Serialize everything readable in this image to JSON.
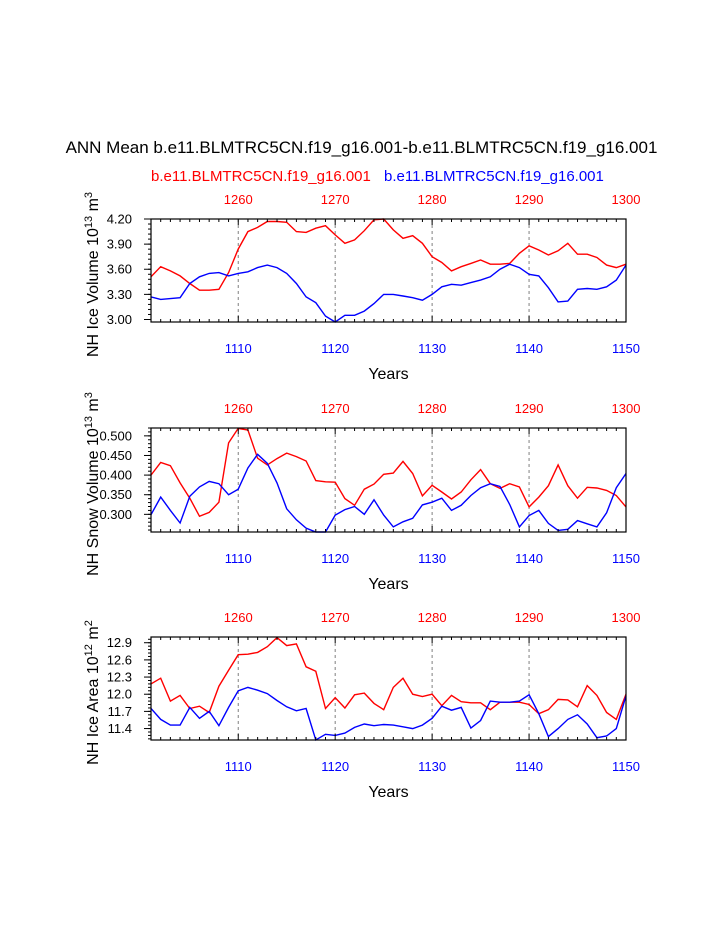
{
  "title": "ANN Mean b.e11.BLMTRC5CN.f19_g16.001-b.e11.BLMTRC5CN.f19_g16.001",
  "legend": {
    "red_label": "b.e11.BLMTRC5CN.f19_g16.001",
    "blue_label": "b.e11.BLMTRC5CN.f19_g16.001"
  },
  "colors": {
    "red": "#ff0000",
    "blue": "#0000ff",
    "axis": "#000000",
    "grid": "#808080"
  },
  "chart_data": [
    {
      "type": "line",
      "ylabel_base": "NH Ice Volume 10",
      "ylabel_exp": "13",
      "ylabel_unit": " m",
      "ylabel_unit_exp": "3",
      "xlabel": "Years",
      "ylim": [
        2.97,
        4.2
      ],
      "yticks": [
        "3.00",
        "3.30",
        "3.60",
        "3.90",
        "4.20"
      ],
      "bottom_axis": {
        "range": [
          1101,
          1150
        ],
        "ticks": [
          "1110",
          "1120",
          "1130",
          "1140",
          "1150"
        ]
      },
      "top_axis": {
        "range": [
          1251,
          1300
        ],
        "ticks": [
          "1260",
          "1270",
          "1280",
          "1290",
          "1300"
        ]
      },
      "series": [
        {
          "name": "b.e11.BLMTRC5CN.f19_g16.001 (1251-1300)",
          "color": "red",
          "values": [
            3.51,
            3.63,
            3.58,
            3.52,
            3.43,
            3.35,
            3.35,
            3.36,
            3.56,
            3.84,
            4.05,
            4.1,
            4.17,
            4.17,
            4.16,
            4.05,
            4.04,
            4.09,
            4.12,
            4.01,
            3.91,
            3.95,
            4.06,
            4.19,
            4.2,
            4.07,
            3.97,
            4.0,
            3.91,
            3.75,
            3.68,
            3.58,
            3.63,
            3.67,
            3.71,
            3.66,
            3.66,
            3.67,
            3.79,
            3.88,
            3.83,
            3.77,
            3.82,
            3.91,
            3.78,
            3.78,
            3.74,
            3.65,
            3.62,
            3.66,
            3.72
          ]
        },
        {
          "name": "b.e11.BLMTRC5CN.f19_g16.001 (1101-1150)",
          "color": "blue",
          "values": [
            3.27,
            3.24,
            3.25,
            3.26,
            3.43,
            3.51,
            3.55,
            3.56,
            3.52,
            3.55,
            3.57,
            3.62,
            3.65,
            3.62,
            3.55,
            3.43,
            3.27,
            3.2,
            3.04,
            2.97,
            3.05,
            3.05,
            3.1,
            3.19,
            3.3,
            3.3,
            3.28,
            3.26,
            3.23,
            3.3,
            3.39,
            3.42,
            3.41,
            3.44,
            3.47,
            3.51,
            3.6,
            3.66,
            3.62,
            3.54,
            3.52,
            3.38,
            3.21,
            3.22,
            3.36,
            3.37,
            3.36,
            3.39,
            3.47,
            3.65,
            3.68
          ]
        }
      ]
    },
    {
      "type": "line",
      "ylabel_base": "NH Snow Volume 10",
      "ylabel_exp": "13",
      "ylabel_unit": " m",
      "ylabel_unit_exp": "3",
      "xlabel": "Years",
      "ylim": [
        0.255,
        0.52
      ],
      "yticks": [
        "0.300",
        "0.350",
        "0.400",
        "0.450",
        "0.500"
      ],
      "bottom_axis": {
        "range": [
          1101,
          1150
        ],
        "ticks": [
          "1110",
          "1120",
          "1130",
          "1140",
          "1150"
        ]
      },
      "top_axis": {
        "range": [
          1251,
          1300
        ],
        "ticks": [
          "1260",
          "1270",
          "1280",
          "1290",
          "1300"
        ]
      },
      "series": [
        {
          "name": "b.e11.BLMTRC5CN.f19_g16.001 (1251-1300)",
          "color": "red",
          "values": [
            0.4,
            0.432,
            0.424,
            0.38,
            0.341,
            0.295,
            0.305,
            0.331,
            0.482,
            0.519,
            0.515,
            0.443,
            0.426,
            0.442,
            0.456,
            0.447,
            0.436,
            0.386,
            0.383,
            0.382,
            0.34,
            0.323,
            0.364,
            0.377,
            0.402,
            0.405,
            0.435,
            0.404,
            0.347,
            0.374,
            0.357,
            0.339,
            0.357,
            0.388,
            0.414,
            0.378,
            0.366,
            0.378,
            0.37,
            0.319,
            0.344,
            0.373,
            0.426,
            0.373,
            0.341,
            0.369,
            0.367,
            0.361,
            0.348,
            0.319,
            0.318
          ]
        },
        {
          "name": "b.e11.BLMTRC5CN.f19_g16.001 (1101-1150)",
          "color": "blue",
          "values": [
            0.299,
            0.344,
            0.31,
            0.278,
            0.346,
            0.37,
            0.384,
            0.378,
            0.35,
            0.364,
            0.418,
            0.453,
            0.43,
            0.38,
            0.314,
            0.286,
            0.265,
            0.255,
            0.255,
            0.298,
            0.312,
            0.32,
            0.3,
            0.337,
            0.298,
            0.268,
            0.281,
            0.29,
            0.324,
            0.331,
            0.341,
            0.31,
            0.323,
            0.348,
            0.368,
            0.378,
            0.371,
            0.325,
            0.268,
            0.297,
            0.31,
            0.277,
            0.259,
            0.262,
            0.284,
            0.276,
            0.268,
            0.304,
            0.368,
            0.404,
            0.4
          ]
        }
      ]
    },
    {
      "type": "line",
      "ylabel_base": "NH Ice Area 10",
      "ylabel_exp": "12",
      "ylabel_unit": " m",
      "ylabel_unit_exp": "2",
      "xlabel": "Years",
      "ylim": [
        11.2,
        13.0
      ],
      "yticks": [
        "11.4",
        "11.7",
        "12.0",
        "12.3",
        "12.6",
        "12.9"
      ],
      "bottom_axis": {
        "range": [
          1101,
          1150
        ],
        "ticks": [
          "1110",
          "1120",
          "1130",
          "1140",
          "1150"
        ]
      },
      "top_axis": {
        "range": [
          1251,
          1300
        ],
        "ticks": [
          "1260",
          "1270",
          "1280",
          "1290",
          "1300"
        ]
      },
      "series": [
        {
          "name": "b.e11.BLMTRC5CN.f19_g16.001 (1251-1300)",
          "color": "red",
          "values": [
            12.18,
            12.28,
            11.88,
            11.98,
            11.75,
            11.79,
            11.68,
            12.14,
            12.42,
            12.69,
            12.7,
            12.73,
            12.83,
            12.99,
            12.85,
            12.88,
            12.48,
            12.4,
            11.75,
            11.94,
            11.76,
            11.99,
            12.02,
            11.84,
            11.73,
            12.12,
            12.28,
            12.0,
            11.96,
            12.0,
            11.8,
            11.98,
            11.87,
            11.85,
            11.85,
            11.73,
            11.86,
            11.86,
            11.86,
            11.82,
            11.66,
            11.73,
            11.91,
            11.9,
            11.78,
            12.15,
            11.98,
            11.68,
            11.56,
            12.0,
            11.96
          ]
        },
        {
          "name": "b.e11.BLMTRC5CN.f19_g16.001 (1101-1150)",
          "color": "blue",
          "values": [
            11.75,
            11.56,
            11.46,
            11.46,
            11.77,
            11.58,
            11.7,
            11.45,
            11.77,
            12.06,
            12.12,
            12.07,
            12.01,
            11.89,
            11.78,
            11.71,
            11.75,
            11.2,
            11.3,
            11.28,
            11.32,
            11.42,
            11.48,
            11.45,
            11.47,
            11.46,
            11.43,
            11.4,
            11.46,
            11.58,
            11.79,
            11.72,
            11.77,
            11.41,
            11.54,
            11.88,
            11.86,
            11.86,
            11.88,
            11.99,
            11.66,
            11.26,
            11.4,
            11.56,
            11.64,
            11.48,
            11.24,
            11.27,
            11.4,
            11.97,
            11.88
          ]
        }
      ]
    }
  ]
}
